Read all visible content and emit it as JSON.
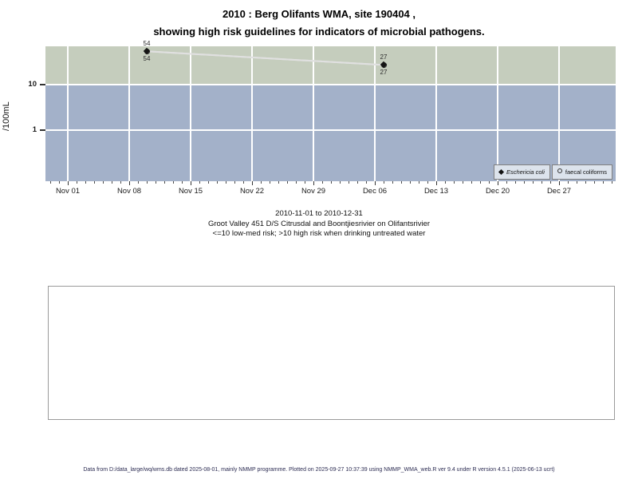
{
  "title": {
    "line1": "2010 : Berg Olifants WMA, site 190404 ,",
    "line2": "showing high risk guidelines for indicators of microbial pathogens."
  },
  "chart_data": {
    "type": "line",
    "title": "2010 : Berg Olifants WMA, site 190404 , showing high risk guidelines for indicators of microbial pathogens.",
    "ylabel": "/100mL",
    "y_scale": "log",
    "y_ticks": [
      10,
      1
    ],
    "x_axis": {
      "range_start": "2010-11-01",
      "range_end": "2010-12-31",
      "tick_labels": [
        "Nov 01",
        "Nov 08",
        "Nov 15",
        "Nov 22",
        "Nov 29",
        "Dec 06",
        "Dec 13",
        "Dec 20",
        "Dec 27"
      ]
    },
    "series": [
      {
        "name": "Eschericia coli",
        "symbol": "filled-diamond",
        "label_position": "above",
        "points": [
          {
            "date": "2010-11-10",
            "value": 54
          },
          {
            "date": "2010-12-07",
            "value": 27
          }
        ]
      },
      {
        "name": "faecal coliforms",
        "symbol": "open-circle",
        "label_position": "below",
        "points": [
          {
            "date": "2010-11-10",
            "value": 54
          },
          {
            "date": "2010-12-07",
            "value": 27
          }
        ]
      }
    ],
    "bands": [
      {
        "name": "high risk",
        "condition": ">10",
        "color": "#c5cdbd"
      },
      {
        "name": "low-med risk",
        "condition": "<=10",
        "color": "#a3b1c9"
      }
    ]
  },
  "legend": {
    "items": [
      {
        "label": "Eschericia coli"
      },
      {
        "label": "faecal coliforms"
      }
    ]
  },
  "subtitle": {
    "line1": "2010-11-01 to 2010-12-31",
    "line2": "Groot Valley 451 D/S Citrusdal and Boontjiesrivier on Olifantsrivier",
    "line3": "<=10 low-med risk; >10 high risk when drinking untreated water"
  },
  "footer": "Data from D:/data_large/wq/wms.db dated 2025-08-01, mainly NMMP programme. Plotted on 2025-09-27 10:37:39 using NMMP_WMA_web.R ver 9.4 under R version 4.5.1 (2025-06-13 ucrt)"
}
